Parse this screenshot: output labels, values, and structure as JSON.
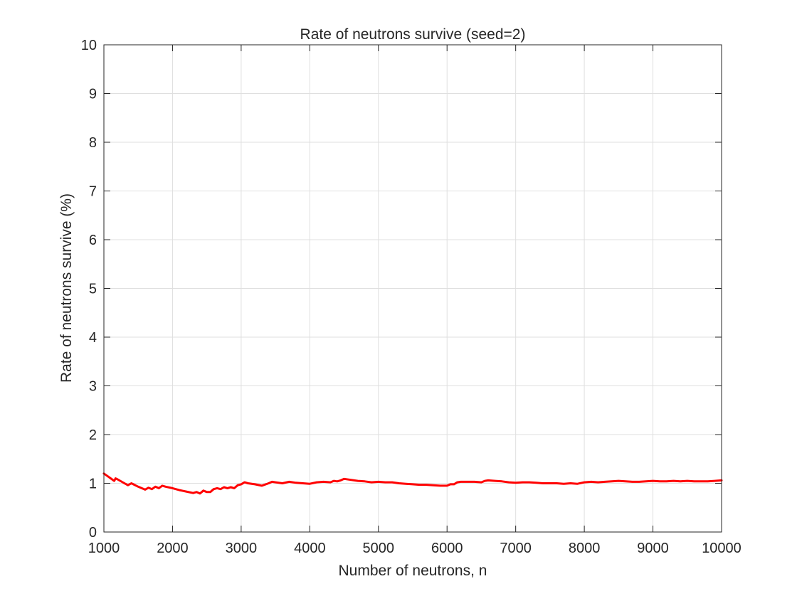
{
  "chart_data": {
    "type": "line",
    "title": "Rate of neutrons survive (seed=2)",
    "xlabel": "Number of neutrons, n",
    "ylabel": "Rate of neutrons survive (%)",
    "xlim": [
      1000,
      10000
    ],
    "ylim": [
      0,
      10
    ],
    "xticks": [
      1000,
      2000,
      3000,
      4000,
      5000,
      6000,
      7000,
      8000,
      9000,
      10000
    ],
    "yticks": [
      0,
      1,
      2,
      3,
      4,
      5,
      6,
      7,
      8,
      9,
      10
    ],
    "grid": true,
    "series": [
      {
        "color": "#ff0000",
        "points": [
          [
            1000,
            1.2
          ],
          [
            1050,
            1.15
          ],
          [
            1100,
            1.1
          ],
          [
            1150,
            1.05
          ],
          [
            1170,
            1.1
          ],
          [
            1200,
            1.08
          ],
          [
            1300,
            1.0
          ],
          [
            1350,
            0.96
          ],
          [
            1400,
            1.0
          ],
          [
            1500,
            0.93
          ],
          [
            1600,
            0.87
          ],
          [
            1650,
            0.91
          ],
          [
            1700,
            0.88
          ],
          [
            1750,
            0.93
          ],
          [
            1800,
            0.9
          ],
          [
            1850,
            0.95
          ],
          [
            1900,
            0.93
          ],
          [
            2000,
            0.9
          ],
          [
            2100,
            0.86
          ],
          [
            2200,
            0.83
          ],
          [
            2300,
            0.8
          ],
          [
            2350,
            0.82
          ],
          [
            2400,
            0.79
          ],
          [
            2450,
            0.85
          ],
          [
            2500,
            0.82
          ],
          [
            2550,
            0.82
          ],
          [
            2600,
            0.88
          ],
          [
            2650,
            0.9
          ],
          [
            2700,
            0.88
          ],
          [
            2750,
            0.92
          ],
          [
            2800,
            0.9
          ],
          [
            2850,
            0.92
          ],
          [
            2900,
            0.9
          ],
          [
            2950,
            0.96
          ],
          [
            3000,
            0.98
          ],
          [
            3050,
            1.02
          ],
          [
            3100,
            1.0
          ],
          [
            3200,
            0.98
          ],
          [
            3300,
            0.95
          ],
          [
            3400,
            1.0
          ],
          [
            3450,
            1.03
          ],
          [
            3500,
            1.02
          ],
          [
            3600,
            1.0
          ],
          [
            3700,
            1.03
          ],
          [
            3800,
            1.01
          ],
          [
            3900,
            1.0
          ],
          [
            4000,
            0.99
          ],
          [
            4100,
            1.02
          ],
          [
            4200,
            1.03
          ],
          [
            4300,
            1.02
          ],
          [
            4350,
            1.05
          ],
          [
            4400,
            1.04
          ],
          [
            4450,
            1.06
          ],
          [
            4500,
            1.09
          ],
          [
            4600,
            1.07
          ],
          [
            4700,
            1.05
          ],
          [
            4800,
            1.04
          ],
          [
            4900,
            1.02
          ],
          [
            5000,
            1.03
          ],
          [
            5100,
            1.02
          ],
          [
            5200,
            1.02
          ],
          [
            5300,
            1.0
          ],
          [
            5400,
            0.99
          ],
          [
            5500,
            0.98
          ],
          [
            5600,
            0.97
          ],
          [
            5700,
            0.97
          ],
          [
            5800,
            0.96
          ],
          [
            5900,
            0.95
          ],
          [
            6000,
            0.95
          ],
          [
            6050,
            0.98
          ],
          [
            6100,
            0.98
          ],
          [
            6150,
            1.02
          ],
          [
            6200,
            1.03
          ],
          [
            6300,
            1.03
          ],
          [
            6400,
            1.03
          ],
          [
            6500,
            1.02
          ],
          [
            6550,
            1.05
          ],
          [
            6600,
            1.06
          ],
          [
            6700,
            1.05
          ],
          [
            6800,
            1.04
          ],
          [
            6900,
            1.02
          ],
          [
            7000,
            1.01
          ],
          [
            7100,
            1.02
          ],
          [
            7200,
            1.02
          ],
          [
            7300,
            1.01
          ],
          [
            7400,
            1.0
          ],
          [
            7500,
            1.0
          ],
          [
            7600,
            1.0
          ],
          [
            7700,
            0.99
          ],
          [
            7800,
            1.0
          ],
          [
            7900,
            0.99
          ],
          [
            8000,
            1.02
          ],
          [
            8100,
            1.03
          ],
          [
            8200,
            1.02
          ],
          [
            8300,
            1.03
          ],
          [
            8400,
            1.04
          ],
          [
            8500,
            1.05
          ],
          [
            8600,
            1.04
          ],
          [
            8700,
            1.03
          ],
          [
            8800,
            1.03
          ],
          [
            8900,
            1.04
          ],
          [
            9000,
            1.05
          ],
          [
            9100,
            1.04
          ],
          [
            9200,
            1.04
          ],
          [
            9300,
            1.05
          ],
          [
            9400,
            1.04
          ],
          [
            9500,
            1.05
          ],
          [
            9600,
            1.04
          ],
          [
            9700,
            1.04
          ],
          [
            9800,
            1.04
          ],
          [
            9900,
            1.05
          ],
          [
            10000,
            1.06
          ]
        ]
      }
    ]
  }
}
